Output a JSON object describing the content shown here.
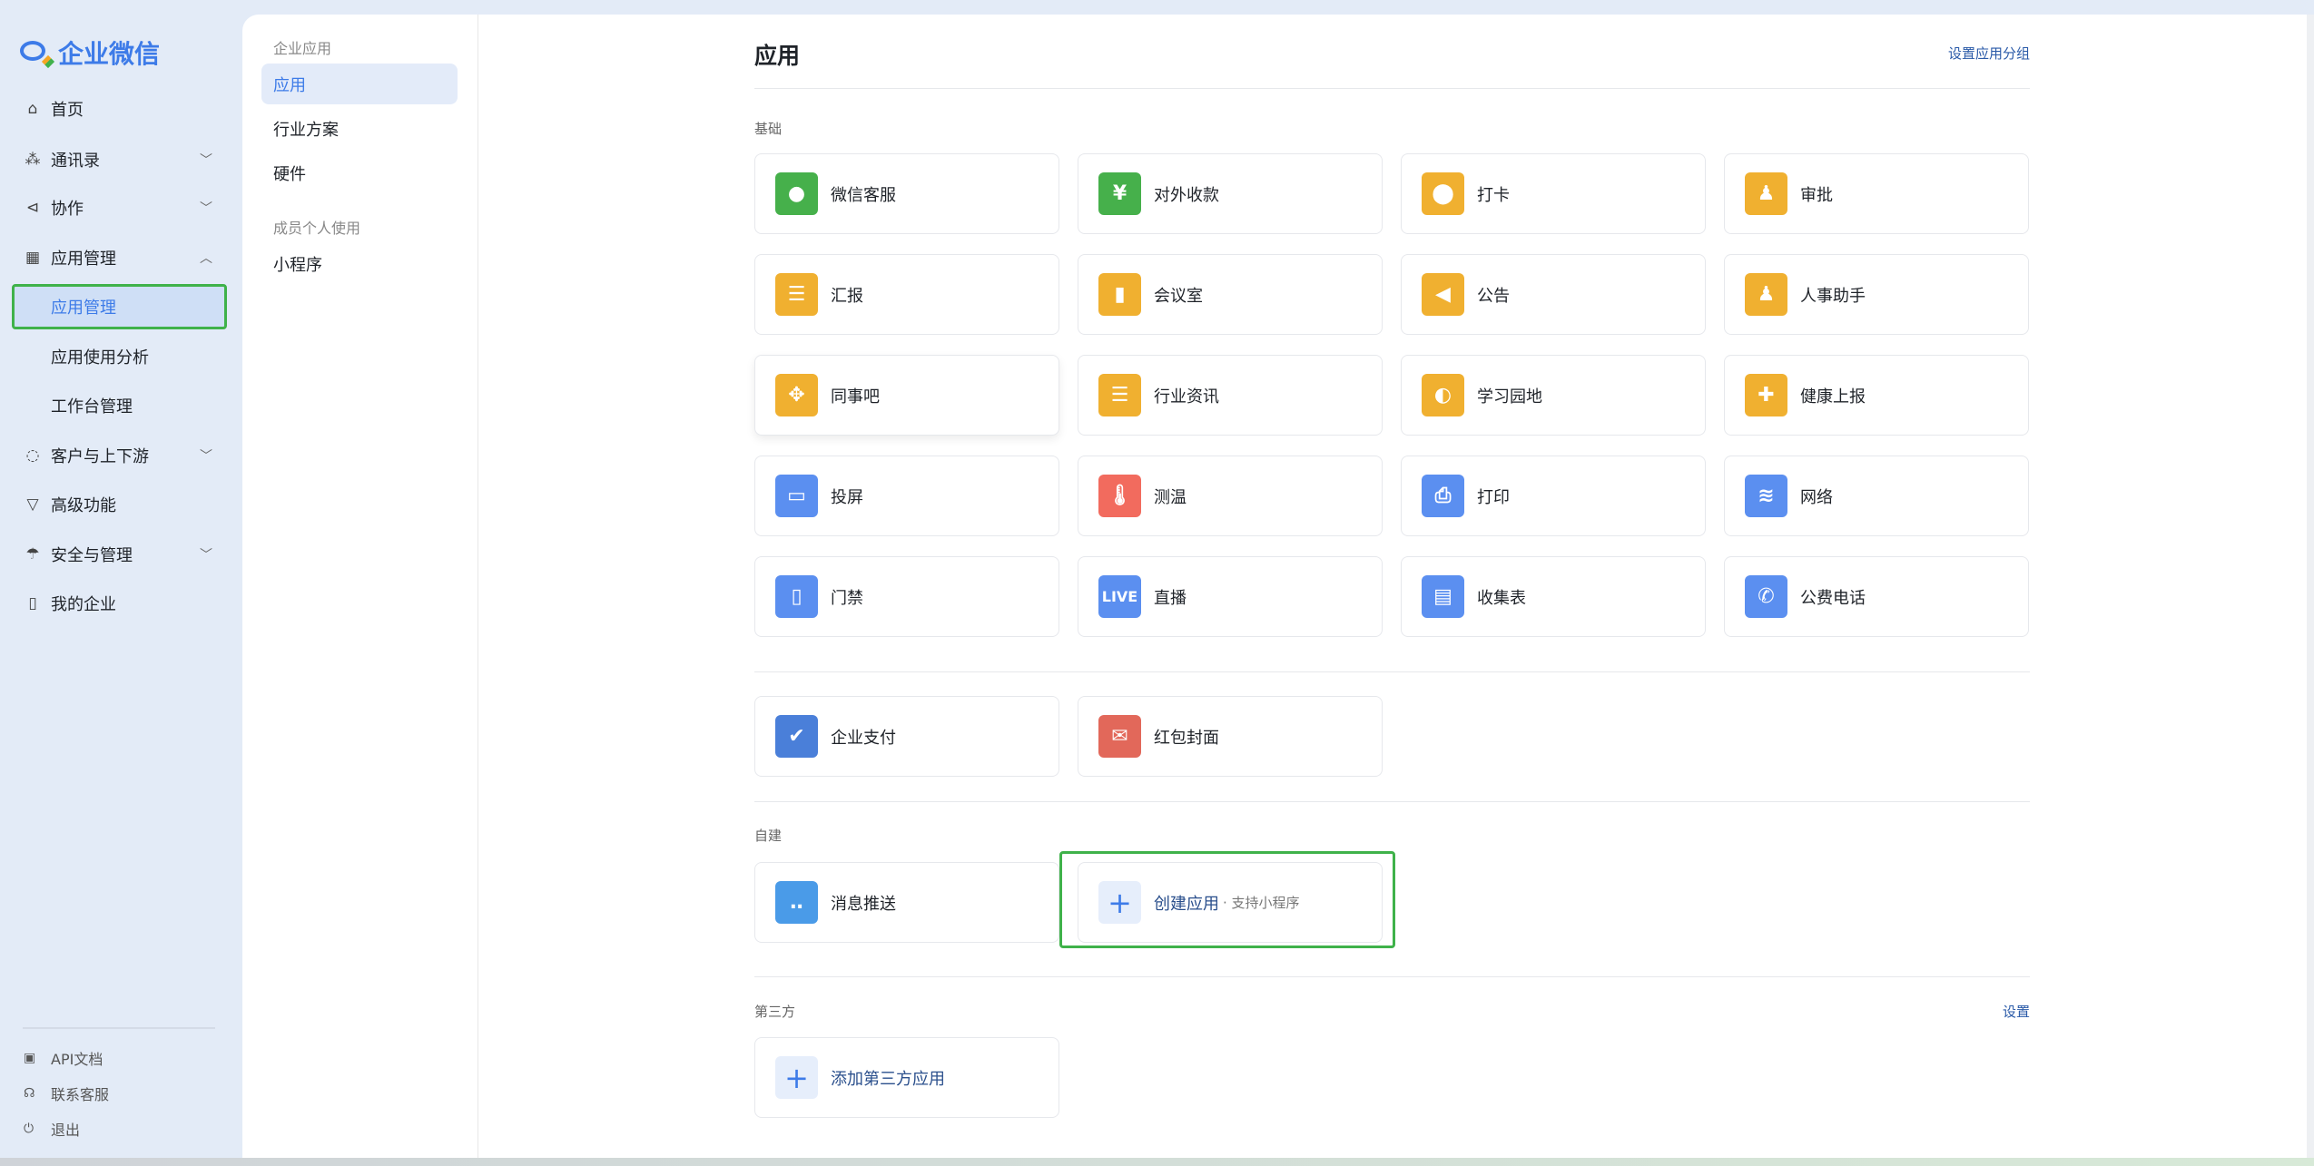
{
  "brand": {
    "name": "企业微信"
  },
  "sidebar": {
    "items": [
      {
        "label": "首页",
        "icon": "home-icon",
        "glyph": "⌂",
        "chevron": ""
      },
      {
        "label": "通讯录",
        "icon": "org-chart-icon",
        "glyph": "⁂",
        "chevron": "﹀"
      },
      {
        "label": "协作",
        "icon": "collaborate-icon",
        "glyph": "⊲",
        "chevron": "﹀"
      },
      {
        "label": "应用管理",
        "icon": "apps-grid-icon",
        "glyph": "▦",
        "chevron": "︿"
      },
      {
        "label": "应用管理",
        "sub": true,
        "active": true
      },
      {
        "label": "应用使用分析",
        "sub": true
      },
      {
        "label": "工作台管理",
        "sub": true
      },
      {
        "label": "客户与上下游",
        "icon": "chat-bubble-icon",
        "glyph": "◌",
        "chevron": "﹀"
      },
      {
        "label": "高级功能",
        "icon": "diamond-icon",
        "glyph": "▽",
        "chevron": ""
      },
      {
        "label": "安全与管理",
        "icon": "umbrella-icon",
        "glyph": "☂",
        "chevron": "﹀"
      },
      {
        "label": "我的企业",
        "icon": "building-icon",
        "glyph": "▯",
        "chevron": ""
      }
    ],
    "footer": [
      {
        "label": "API文档",
        "icon": "api-doc-icon",
        "glyph": "▣"
      },
      {
        "label": "联系客服",
        "icon": "headset-icon",
        "glyph": "☊"
      },
      {
        "label": "退出",
        "icon": "power-icon",
        "glyph": "⏻"
      }
    ]
  },
  "subnav": {
    "group1": "企业应用",
    "items1": [
      "应用",
      "行业方案",
      "硬件"
    ],
    "group2": "成员个人使用",
    "items2": [
      "小程序"
    ]
  },
  "main": {
    "title": "应用",
    "group_setting": "设置应用分组",
    "basic_label": "基础",
    "basic": [
      {
        "label": "微信客服",
        "color": "#46b04b",
        "glyph": "●"
      },
      {
        "label": "对外收款",
        "color": "#46b04b",
        "glyph": "¥"
      },
      {
        "label": "打卡",
        "color": "#f0b030",
        "glyph": "⬤"
      },
      {
        "label": "审批",
        "color": "#f0b030",
        "glyph": "♟"
      },
      {
        "label": "汇报",
        "color": "#f0b030",
        "glyph": "☰"
      },
      {
        "label": "会议室",
        "color": "#f0b030",
        "glyph": "▮"
      },
      {
        "label": "公告",
        "color": "#f0b030",
        "glyph": "◀"
      },
      {
        "label": "人事助手",
        "color": "#f0b030",
        "glyph": "♟"
      },
      {
        "label": "同事吧",
        "color": "#f0b030",
        "glyph": "✥"
      },
      {
        "label": "行业资讯",
        "color": "#f0b030",
        "glyph": "☰"
      },
      {
        "label": "学习园地",
        "color": "#f0b030",
        "glyph": "◐"
      },
      {
        "label": "健康上报",
        "color": "#f0b030",
        "glyph": "✚"
      },
      {
        "label": "投屏",
        "color": "#5b8ff0",
        "glyph": "▭"
      },
      {
        "label": "测温",
        "color": "#f26b5e",
        "glyph": "🌡"
      },
      {
        "label": "打印",
        "color": "#5b8ff0",
        "glyph": "⎙"
      },
      {
        "label": "网络",
        "color": "#5b8ff0",
        "glyph": "≋"
      },
      {
        "label": "门禁",
        "color": "#5b8ff0",
        "glyph": "▯"
      },
      {
        "label": "直播",
        "color": "#5b8ff0",
        "glyph": "LIVE"
      },
      {
        "label": "收集表",
        "color": "#5b8ff0",
        "glyph": "▤"
      },
      {
        "label": "公费电话",
        "color": "#5b8ff0",
        "glyph": "✆"
      }
    ],
    "extra": [
      {
        "label": "企业支付",
        "color": "#4a7fd9",
        "glyph": "✔"
      },
      {
        "label": "红包封面",
        "color": "#e2685a",
        "glyph": "✉"
      }
    ],
    "custom_label": "自建",
    "custom": [
      {
        "label": "消息推送",
        "color": "#4a9be8",
        "glyph": "‥"
      }
    ],
    "create": {
      "label": "创建应用",
      "sub": "· 支持小程序",
      "glyph": "+"
    },
    "third_label": "第三方",
    "third_setting": "设置",
    "add_third": {
      "label": "添加第三方应用",
      "glyph": "+"
    }
  }
}
